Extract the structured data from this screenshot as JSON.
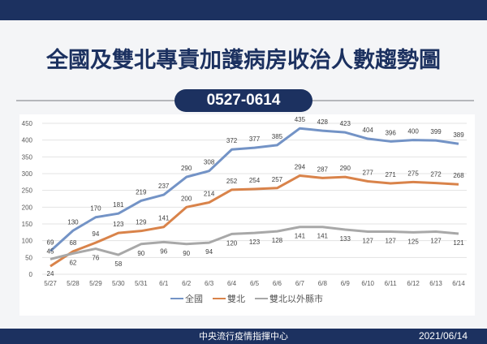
{
  "header": {
    "title": "全國及雙北專責加護病房收治人數趨勢圖",
    "date_range": "0527-0614"
  },
  "footer": {
    "organization": "中央流行疫情指揮中心",
    "date": "2021/06/14"
  },
  "chart_data": {
    "type": "line",
    "title": "",
    "xlabel": "",
    "ylabel": "",
    "ylim": [
      0,
      450
    ],
    "yticks": [
      0,
      50,
      100,
      150,
      200,
      250,
      300,
      350,
      400,
      450
    ],
    "grid": true,
    "legend": "bottom",
    "categories": [
      "5/27",
      "5/28",
      "5/29",
      "5/30",
      "5/31",
      "6/1",
      "6/2",
      "6/3",
      "6/4",
      "6/5",
      "6/6",
      "6/7",
      "6/8",
      "6/9",
      "6/10",
      "6/11",
      "6/12",
      "6/13",
      "6/14"
    ],
    "series": [
      {
        "name": "全國",
        "color": "#7393c6",
        "values": [
          69,
          130,
          170,
          181,
          219,
          237,
          290,
          308,
          372,
          377,
          385,
          435,
          428,
          423,
          404,
          396,
          400,
          399,
          389
        ]
      },
      {
        "name": "雙北",
        "color": "#d9834a",
        "values": [
          24,
          68,
          94,
          123,
          129,
          141,
          200,
          214,
          252,
          254,
          257,
          294,
          287,
          290,
          277,
          271,
          275,
          272,
          268
        ]
      },
      {
        "name": "雙北以外縣市",
        "color": "#a8a8a8",
        "values": [
          45,
          62,
          76,
          58,
          90,
          96,
          90,
          94,
          120,
          123,
          128,
          141,
          141,
          133,
          127,
          127,
          125,
          127,
          121
        ]
      }
    ]
  }
}
